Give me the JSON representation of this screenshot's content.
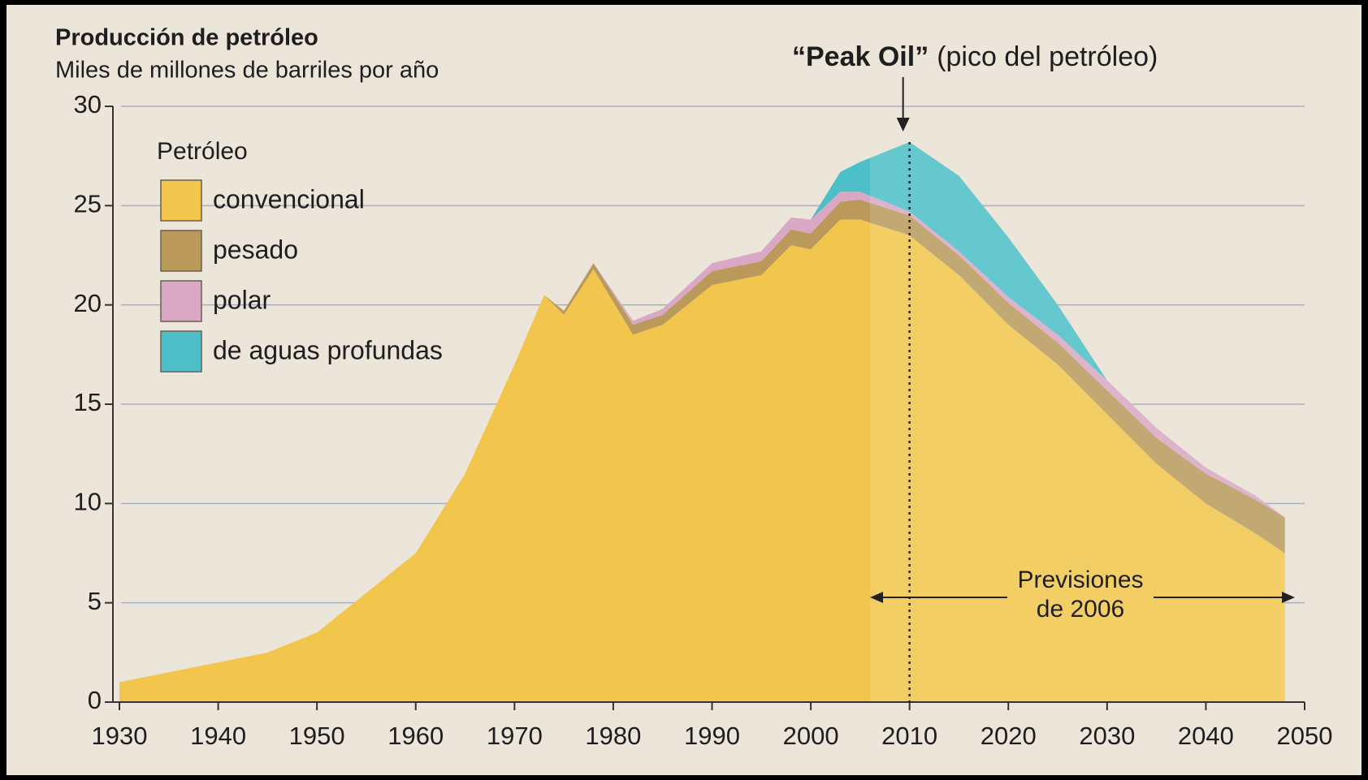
{
  "chart_data": {
    "type": "stacked_area",
    "title": "Producción de petróleo",
    "subtitle": "Miles de millones de barriles por año",
    "legend_title": "Petróleo",
    "annotation_peak_bold": "“Peak Oil”",
    "annotation_peak": "(pico del petróleo)",
    "peak_x": 2010,
    "forecast_label": [
      "Previsiones",
      "de 2006"
    ],
    "forecast_range": [
      2006,
      2050
    ],
    "x": [
      1930,
      1935,
      1940,
      1945,
      1950,
      1955,
      1960,
      1965,
      1970,
      1973,
      1975,
      1978,
      1982,
      1985,
      1990,
      1995,
      1998,
      2000,
      2003,
      2005,
      2010,
      2015,
      2020,
      2025,
      2030,
      2035,
      2040,
      2045,
      2048
    ],
    "series": [
      {
        "name": "convencional",
        "color": "#f2c64c",
        "values": [
          1,
          1.5,
          2,
          2.5,
          3.5,
          5.5,
          7.5,
          11.5,
          17,
          20.5,
          19.5,
          21.8,
          18.5,
          19,
          21,
          21.5,
          23,
          22.8,
          24.3,
          24.3,
          23.5,
          21.5,
          19,
          17,
          14.5,
          12,
          10,
          8.5,
          7.5
        ]
      },
      {
        "name": "pesado",
        "color": "#b99a5b",
        "values": [
          0,
          0,
          0,
          0,
          0,
          0,
          0,
          0,
          0,
          0,
          0.2,
          0.3,
          0.5,
          0.5,
          0.7,
          0.7,
          0.8,
          0.8,
          0.9,
          1,
          1,
          1,
          1.1,
          1.1,
          1.2,
          1.3,
          1.5,
          1.7,
          1.8
        ]
      },
      {
        "name": "polar",
        "color": "#d8a8c4",
        "values": [
          0,
          0,
          0,
          0,
          0,
          0,
          0,
          0,
          0,
          0,
          0,
          0,
          0.2,
          0.3,
          0.4,
          0.5,
          0.6,
          0.7,
          0.5,
          0.4,
          0.2,
          0.2,
          0.3,
          0.4,
          0.5,
          0.5,
          0.3,
          0.2,
          0
        ]
      },
      {
        "name": "de aguas profundas",
        "color": "#4dbfc8",
        "values": [
          0,
          0,
          0,
          0,
          0,
          0,
          0,
          0,
          0,
          0,
          0,
          0,
          0,
          0,
          0,
          0,
          0,
          0,
          1,
          1.5,
          3.5,
          3.8,
          3,
          1.5,
          0,
          0,
          0,
          0,
          0
        ]
      }
    ],
    "xlim": [
      1930,
      2050
    ],
    "xticks": [
      1930,
      1940,
      1950,
      1960,
      1970,
      1980,
      1990,
      2000,
      2010,
      2020,
      2030,
      2040,
      2050
    ],
    "ylim": [
      0,
      30
    ],
    "yticks": [
      0,
      5,
      10,
      15,
      20,
      25,
      30
    ],
    "grid": true
  }
}
